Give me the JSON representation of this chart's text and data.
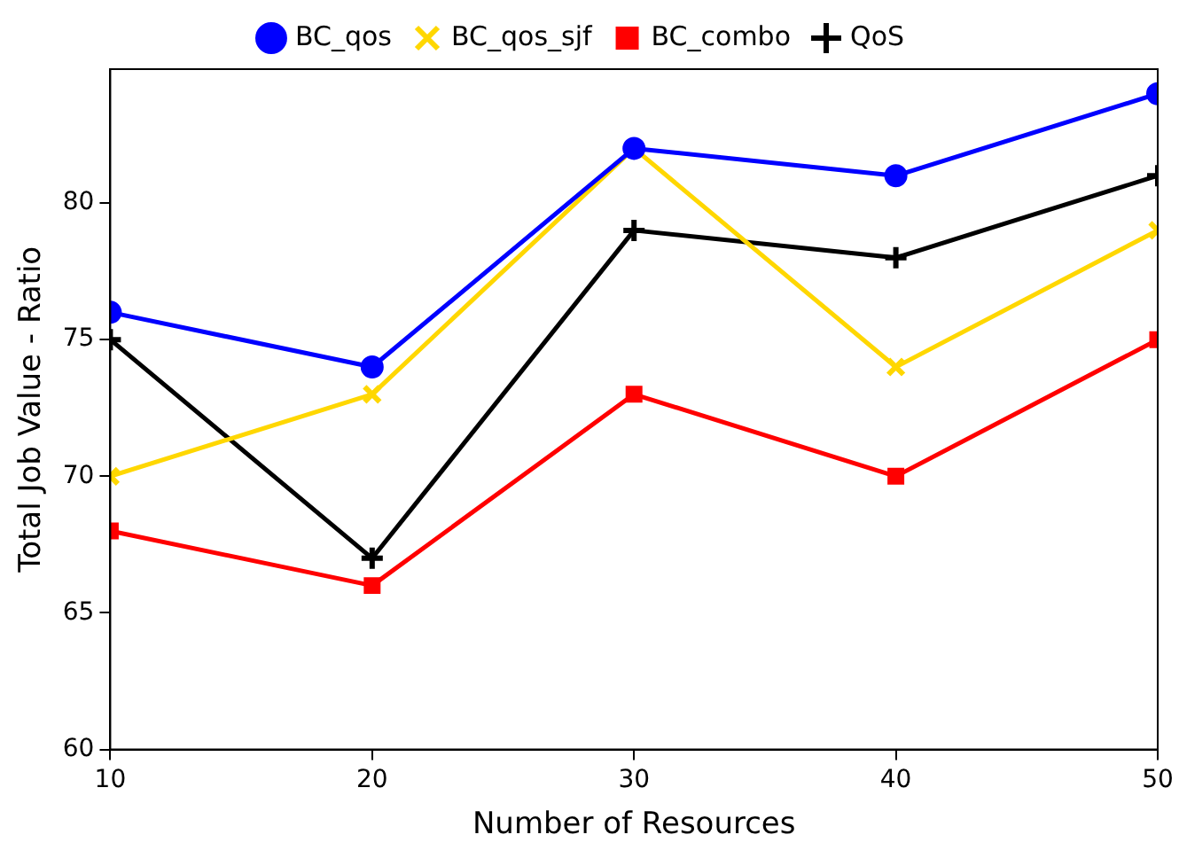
{
  "chart_data": {
    "type": "line",
    "xlabel": "Number of Resources",
    "ylabel": "Total Job Value - Ratio",
    "x": [
      10,
      20,
      30,
      40,
      50
    ],
    "xlim": [
      10,
      50
    ],
    "xticks": [
      10,
      20,
      30,
      40,
      50
    ],
    "ylim": [
      60,
      84.9
    ],
    "yticks": [
      60,
      65,
      70,
      75,
      80
    ],
    "grid": false,
    "legend": "top",
    "line_style": "solid",
    "series": [
      {
        "name": "BC_qos",
        "color": "#0000ff",
        "marker": "circle",
        "values": [
          76,
          74,
          82,
          81,
          84
        ]
      },
      {
        "name": "BC_qos_sjf",
        "color": "#ffd700",
        "marker": "x",
        "values": [
          70,
          73,
          82,
          74,
          79
        ]
      },
      {
        "name": "BC_combo",
        "color": "#ff0000",
        "marker": "square",
        "values": [
          68,
          66,
          73,
          70,
          75
        ]
      },
      {
        "name": "QoS",
        "color": "#000000",
        "marker": "plus",
        "values": [
          75,
          67,
          79,
          78,
          81
        ]
      }
    ]
  }
}
